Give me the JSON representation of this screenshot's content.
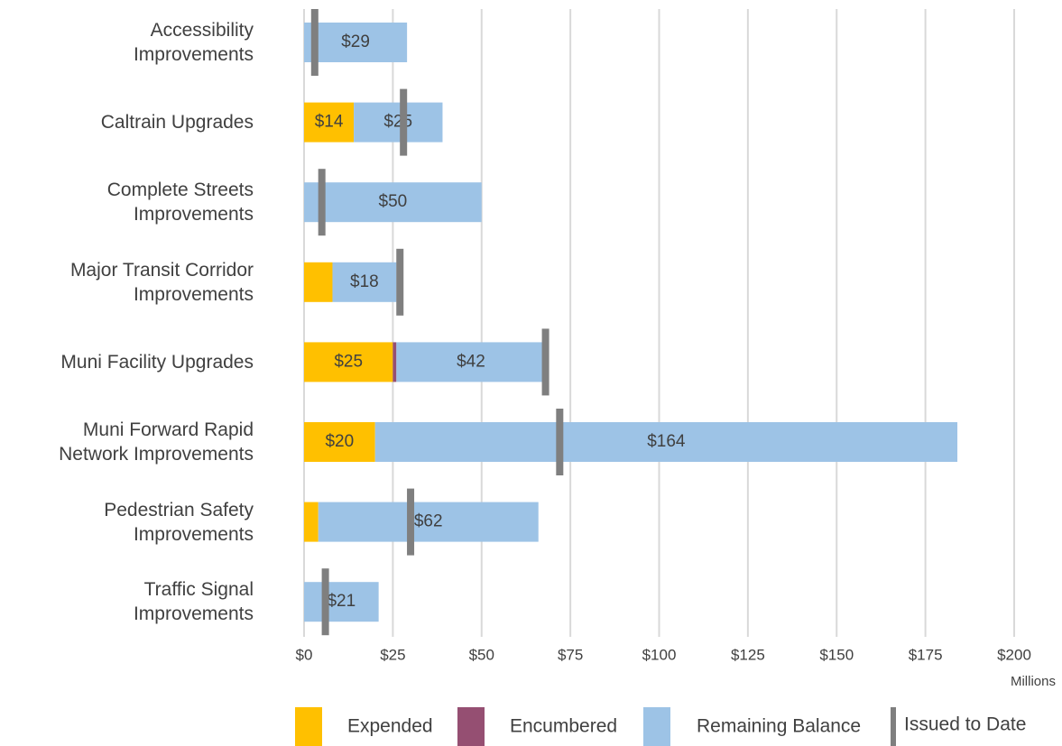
{
  "chart_data": {
    "type": "bar",
    "orientation": "horizontal",
    "stacked": true,
    "categories": [
      "Accessibility\nImprovements",
      "Caltrain Upgrades",
      "Complete Streets\nImprovements",
      "Major Transit Corridor\nImprovements",
      "Muni Facility Upgrades",
      "Muni Forward Rapid\nNetwork Improvements",
      "Pedestrian Safety\nImprovements",
      "Traffic Signal\nImprovements"
    ],
    "series": [
      {
        "name": "Expended",
        "color": "#FFC000",
        "values": [
          0,
          14,
          0,
          8,
          25,
          20,
          4,
          0
        ],
        "value_labels": [
          null,
          "$14",
          null,
          null,
          "$25",
          "$20",
          null,
          null
        ]
      },
      {
        "name": "Encumbered",
        "color": "#954F72",
        "values": [
          0,
          0,
          0,
          0,
          1,
          0,
          0,
          0
        ]
      },
      {
        "name": "Remaining Balance",
        "color": "#9DC3E6",
        "values": [
          29,
          25,
          50,
          18,
          42,
          164,
          62,
          21
        ],
        "value_labels": [
          "$29",
          "$25",
          "$50",
          "$18",
          "$42",
          "$164",
          "$62",
          "$21"
        ]
      }
    ],
    "markers": {
      "name": "Issued to Date",
      "color": "#7F7F7F",
      "values": [
        3,
        28,
        5,
        27,
        68,
        72,
        30,
        6
      ]
    },
    "xlim": [
      0,
      200
    ],
    "xticks": [
      {
        "value": 0,
        "label": "$0"
      },
      {
        "value": 25,
        "label": "$25"
      },
      {
        "value": 50,
        "label": "$50"
      },
      {
        "value": 75,
        "label": "$75"
      },
      {
        "value": 100,
        "label": "$100"
      },
      {
        "value": 125,
        "label": "$125"
      },
      {
        "value": 150,
        "label": "$150"
      },
      {
        "value": 175,
        "label": "$175"
      },
      {
        "value": 200,
        "label": "$200"
      }
    ],
    "x_unit_label": "Millions",
    "grid": true,
    "legend": "bottom"
  }
}
